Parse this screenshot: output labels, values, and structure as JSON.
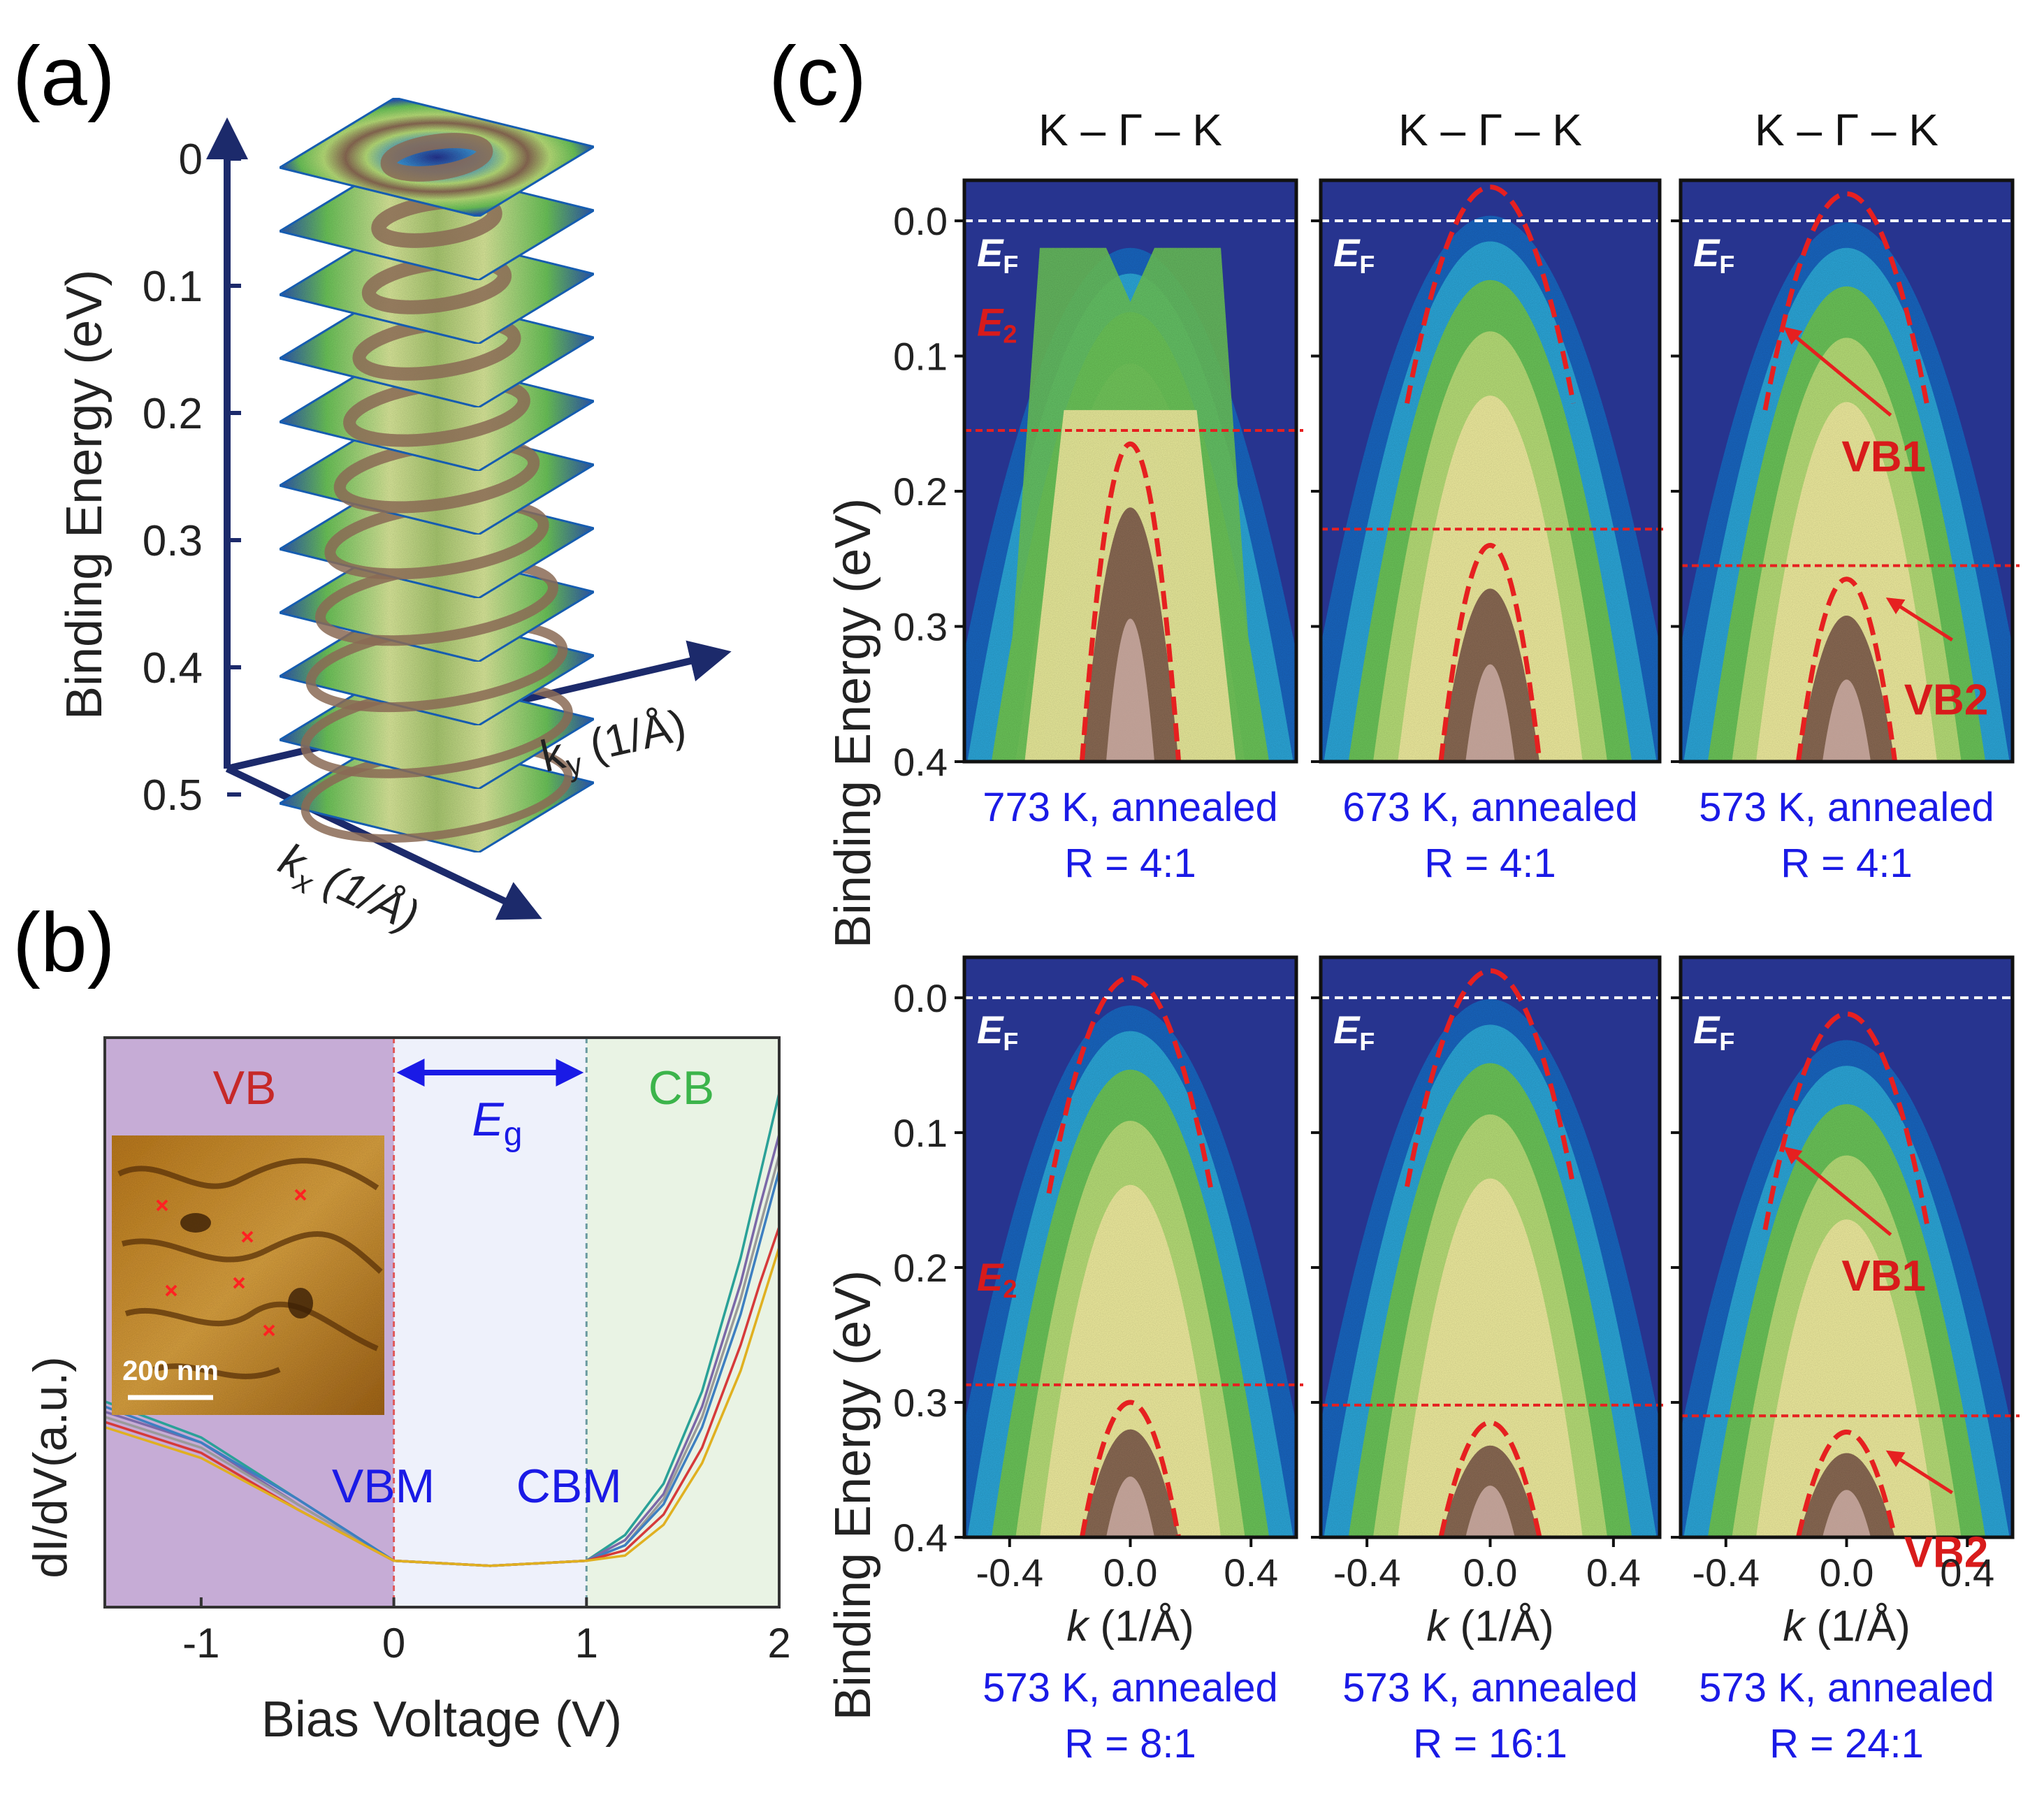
{
  "panel_labels": {
    "a": "(a)",
    "b": "(b)",
    "c": "(c)"
  },
  "colors": {
    "arpes_bg": "#27348f",
    "arpes_blue": "#1f66c0",
    "arpes_cyan": "#2ea6d8",
    "arpes_green": "#6cc45a",
    "arpes_lightgreen": "#b7de78",
    "arpes_yellow": "#efec9f",
    "arpes_brown": "#8a6a55",
    "arpes_pink": "#d9b9b4",
    "dispersion_red": "#e62020",
    "label_red": "#d81b1b",
    "caption_blue": "#1a1ae6",
    "axis_navy": "#1c2a6b",
    "vb_region": "#c6acd6",
    "gap_region": "#eef1fb",
    "cb_region": "#e9f3e4"
  },
  "panel_a": {
    "ylabel": "Binding Energy  (eV)",
    "ticks": [
      "0",
      "0.1",
      "0.2",
      "0.3",
      "0.4",
      "0.5"
    ],
    "kx_label": "k",
    "kx_sub": "x",
    "kx_unit": " (1/Å)",
    "ky_label": "k",
    "ky_sub": "y",
    "ky_unit": " (1/Å)"
  },
  "panel_b": {
    "chart_data": {
      "type": "line",
      "title": "",
      "xlabel": "Bias Voltage (V)",
      "ylabel": "dI/dV(a.u.)",
      "xlim": [
        -1.5,
        2
      ],
      "xticks": [
        "-1",
        "0",
        "1",
        "2"
      ],
      "xtick_values": [
        -1,
        0,
        1,
        2
      ],
      "vbm_bias": 0,
      "cbm_bias": 1,
      "regions": {
        "vb": "VB",
        "cb": "CB",
        "gap": "E",
        "gap_sub": "g"
      },
      "markers": {
        "vbm": "VBM",
        "cbm": "CBM"
      },
      "inset_scale": "200 nm",
      "series": [
        {
          "name": "s1",
          "color": "#2aa198",
          "x": [
            -1.5,
            -1,
            -0.5,
            0,
            0.5,
            1,
            1.2,
            1.4,
            1.6,
            1.8,
            1.9,
            2
          ],
          "y": [
            0.38,
            0.31,
            0.19,
            0.07,
            0.06,
            0.07,
            0.12,
            0.22,
            0.4,
            0.66,
            0.82,
            0.98
          ]
        },
        {
          "name": "s2",
          "color": "#7b68a8",
          "x": [
            -1.5,
            -1,
            -0.5,
            0,
            0.5,
            1,
            1.2,
            1.4,
            1.6,
            1.8,
            1.9,
            2
          ],
          "y": [
            0.36,
            0.3,
            0.18,
            0.07,
            0.06,
            0.07,
            0.11,
            0.2,
            0.37,
            0.61,
            0.76,
            0.9
          ]
        },
        {
          "name": "s3",
          "color": "#9a9a9a",
          "x": [
            -1.5,
            -1,
            -0.5,
            0,
            0.5,
            1,
            1.2,
            1.4,
            1.6,
            1.8,
            1.9,
            2
          ],
          "y": [
            0.35,
            0.29,
            0.18,
            0.07,
            0.06,
            0.07,
            0.1,
            0.19,
            0.35,
            0.58,
            0.72,
            0.86
          ]
        },
        {
          "name": "s4",
          "color": "#3d7fc1",
          "x": [
            -1.5,
            -1,
            -0.5,
            0,
            0.5,
            1,
            1.2,
            1.4,
            1.6,
            1.8,
            1.9,
            2
          ],
          "y": [
            0.37,
            0.3,
            0.19,
            0.07,
            0.06,
            0.07,
            0.1,
            0.18,
            0.33,
            0.55,
            0.69,
            0.83
          ]
        },
        {
          "name": "s5",
          "color": "#d63a3a",
          "x": [
            -1.5,
            -1,
            -0.5,
            0,
            0.5,
            1,
            1.2,
            1.4,
            1.6,
            1.8,
            1.9,
            2
          ],
          "y": [
            0.34,
            0.28,
            0.17,
            0.07,
            0.06,
            0.07,
            0.09,
            0.16,
            0.29,
            0.49,
            0.61,
            0.72
          ]
        },
        {
          "name": "s6",
          "color": "#e0b020",
          "x": [
            -1.5,
            -1,
            -0.5,
            0,
            0.5,
            1,
            1.2,
            1.4,
            1.6,
            1.8,
            1.9,
            2
          ],
          "y": [
            0.33,
            0.27,
            0.17,
            0.07,
            0.06,
            0.07,
            0.08,
            0.14,
            0.26,
            0.44,
            0.56,
            0.68
          ]
        }
      ]
    }
  },
  "panel_c": {
    "ylabel": "Binding Energy (eV)",
    "xlabel": "k",
    "xlabel_unit": " (1/Å)",
    "ef": "E",
    "ef_sub": "F",
    "e2": "E",
    "e2_sub": "2",
    "vb1": "VB1",
    "vb2": "VB2",
    "chart_data": {
      "type": "heatmap",
      "ylim": [
        0.4,
        -0.03
      ],
      "xlim": [
        -0.55,
        0.55
      ],
      "yticks": [
        "0.0",
        "0.1",
        "0.2",
        "0.3",
        "0.4"
      ],
      "ytick_values": [
        0,
        0.1,
        0.2,
        0.3,
        0.4
      ],
      "xticks": [
        "-0.4",
        "0.0",
        "0.4"
      ],
      "xtick_values": [
        -0.4,
        0,
        0.4
      ],
      "panels": [
        {
          "title": "K – Γ – K",
          "caption1": "773 K, annealed",
          "caption2": "R = 4:1",
          "e2": 0.155,
          "vb1_top": null,
          "vb2_top": 0.165,
          "show_e2": true,
          "show_vb": false
        },
        {
          "title": "K – Γ – K",
          "caption1": "673 K, annealed",
          "caption2": "R = 4:1",
          "e2": 0.228,
          "vb1_top": -0.025,
          "vb2_top": 0.24,
          "show_e2": false,
          "show_vb": false
        },
        {
          "title": "K – Γ – K",
          "caption1": "573 K, annealed",
          "caption2": "R = 4:1",
          "e2": 0.255,
          "vb1_top": -0.02,
          "vb2_top": 0.265,
          "show_e2": false,
          "show_vb": true
        },
        {
          "title": "",
          "caption1": "573 K, annealed",
          "caption2": "R = 8:1",
          "e2": 0.287,
          "vb1_top": -0.015,
          "vb2_top": 0.3,
          "show_e2": true,
          "show_vb": false
        },
        {
          "title": "",
          "caption1": "573 K, annealed",
          "caption2": "R = 16:1",
          "e2": 0.302,
          "vb1_top": -0.02,
          "vb2_top": 0.315,
          "show_e2": false,
          "show_vb": false
        },
        {
          "title": "",
          "caption1": "573 K, annealed",
          "caption2": "R = 24:1",
          "e2": 0.31,
          "vb1_top": 0.012,
          "vb2_top": 0.322,
          "show_e2": false,
          "show_vb": true
        }
      ]
    }
  }
}
